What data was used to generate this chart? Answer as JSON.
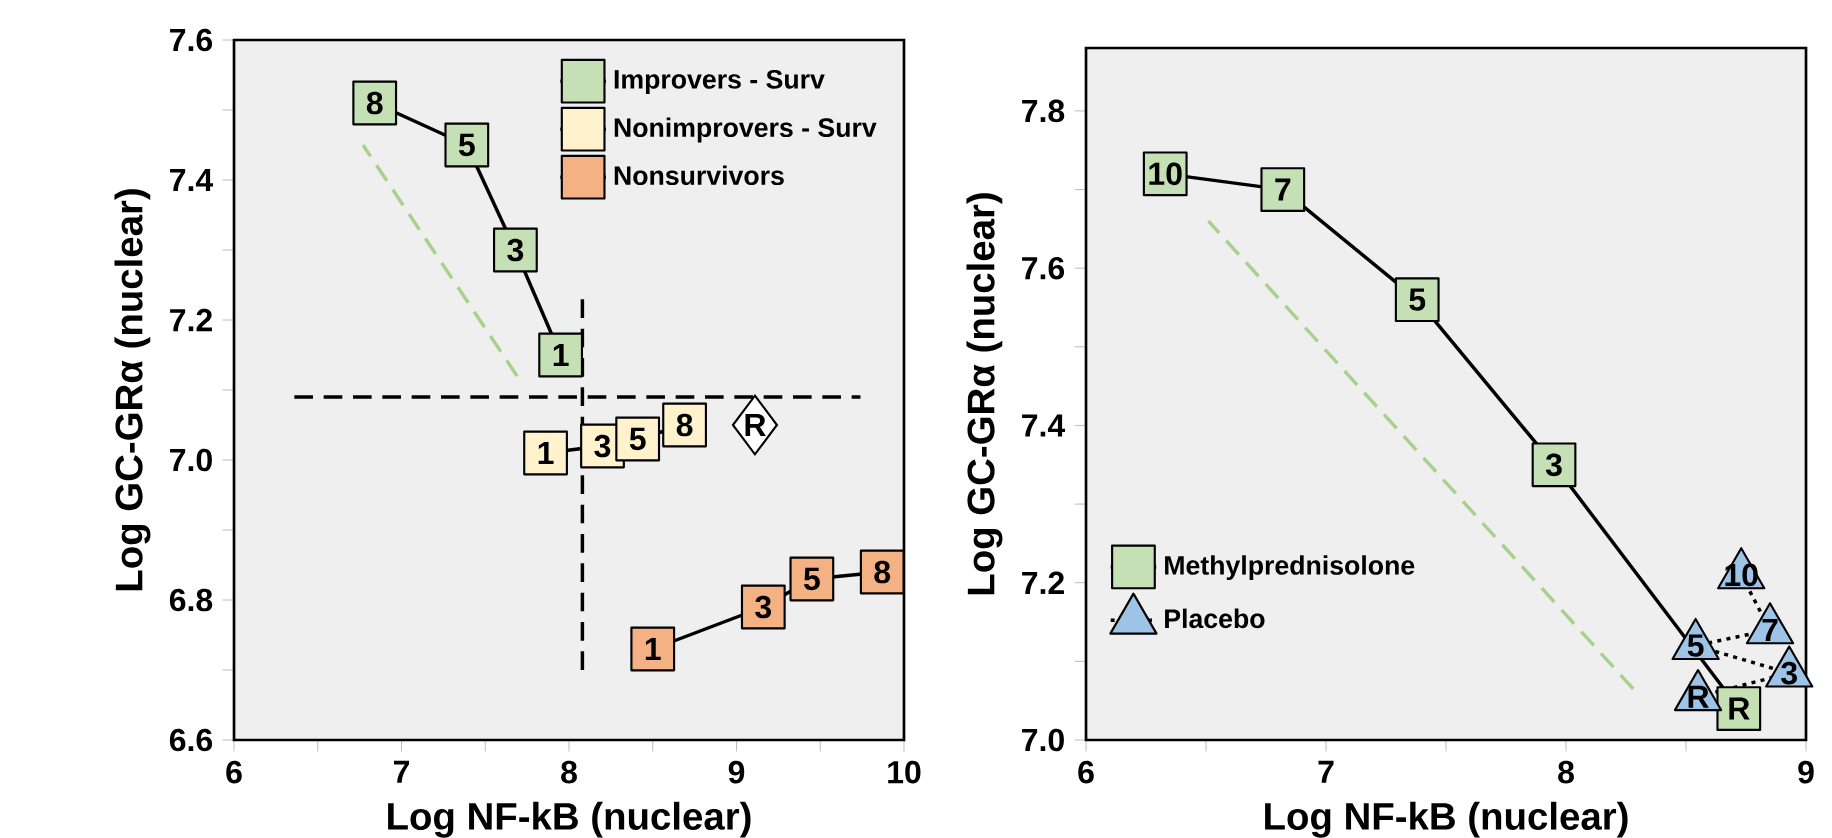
{
  "chart_data": [
    {
      "type": "line",
      "xlabel": "Log NF-kB (nuclear)",
      "ylabel": "Log GC-GRα (nuclear)",
      "xlim": [
        6,
        10
      ],
      "ylim": [
        6.6,
        7.6
      ],
      "xticks": [
        6,
        {
          "value": 6.5,
          "label": null
        },
        7,
        {
          "value": 7.5,
          "label": null
        },
        8,
        {
          "value": 8.5,
          "label": null
        },
        9,
        {
          "value": 9.5,
          "label": null
        },
        10
      ],
      "yticks": [
        6.6,
        {
          "value": 6.7,
          "label": null
        },
        6.8,
        {
          "value": 6.9,
          "label": null
        },
        {
          "value": 7.0,
          "label": "7.0"
        },
        {
          "value": 7.1,
          "label": null
        },
        7.2,
        {
          "value": 7.3,
          "label": null
        },
        7.4,
        {
          "value": 7.5,
          "label": null
        },
        7.6
      ],
      "legend": "top right",
      "grid": false,
      "series": [
        {
          "color": "#000000",
          "line_style": "dashed",
          "marker": "none",
          "x": [
            6.36,
            9.74
          ],
          "values": [
            7.09,
            7.09
          ]
        },
        {
          "color": "#000000",
          "line_style": "dashed",
          "marker": "none",
          "x": [
            8.08,
            8.08
          ],
          "values": [
            6.7,
            7.23
          ]
        },
        {
          "color": "#a9d18e",
          "line_style": "dashed",
          "marker": "none",
          "x": [
            7.69,
            6.77
          ],
          "values": [
            7.12,
            7.45
          ]
        },
        {
          "name": "Improvers - Surv",
          "color": "#c5e0b4",
          "line_style": "solid",
          "marker": "square",
          "x": [
            6.84,
            7.39,
            7.68,
            7.95
          ],
          "values": [
            7.51,
            7.45,
            7.3,
            7.15
          ]
        },
        {
          "name": "Nonimprovers - Surv",
          "color": "#fff2cc",
          "line_style": "solid",
          "marker": "square",
          "x": [
            7.86,
            8.2,
            8.41,
            8.69
          ],
          "values": [
            7.01,
            7.02,
            7.03,
            7.05
          ]
        },
        {
          "name": "Nonsurvivors",
          "color": "#f4b183",
          "line_style": "solid",
          "marker": "square",
          "x": [
            8.5,
            9.16,
            9.45,
            9.87
          ],
          "values": [
            6.73,
            6.79,
            6.83,
            6.84
          ]
        },
        {
          "type": "scatter",
          "color": "#ffffff",
          "marker": "diamond",
          "x": [
            9.11
          ],
          "values": [
            7.05
          ]
        }
      ],
      "annotations": [
        {
          "text": "8",
          "x": 6.84,
          "y": 7.51
        },
        {
          "text": "5",
          "x": 7.39,
          "y": 7.45
        },
        {
          "text": "3",
          "x": 7.68,
          "y": 7.3
        },
        {
          "text": "1",
          "x": 7.95,
          "y": 7.15
        },
        {
          "text": "1",
          "x": 7.86,
          "y": 7.01
        },
        {
          "text": "3",
          "x": 8.2,
          "y": 7.02
        },
        {
          "text": "5",
          "x": 8.41,
          "y": 7.03
        },
        {
          "text": "8",
          "x": 8.69,
          "y": 7.05
        },
        {
          "text": "1",
          "x": 8.5,
          "y": 6.73
        },
        {
          "text": "3",
          "x": 9.16,
          "y": 6.79
        },
        {
          "text": "5",
          "x": 9.45,
          "y": 6.83
        },
        {
          "text": "8",
          "x": 9.87,
          "y": 6.84
        },
        {
          "text": "R",
          "x": 9.11,
          "y": 7.05
        }
      ]
    },
    {
      "type": "line",
      "xlabel": "Log NF-kB (nuclear)",
      "ylabel": "Log GC-GRα (nuclear)",
      "xlim": [
        6,
        9
      ],
      "ylim": [
        7.0,
        7.88
      ],
      "xticks": [
        6,
        {
          "value": 6.5,
          "label": null
        },
        7,
        {
          "value": 7.5,
          "label": null
        },
        8,
        {
          "value": 8.5,
          "label": null
        },
        9
      ],
      "yticks": [
        {
          "value": 7.0,
          "label": "7.0"
        },
        {
          "value": 7.1,
          "label": null
        },
        7.2,
        {
          "value": 7.3,
          "label": null
        },
        7.4,
        {
          "value": 7.5,
          "label": null
        },
        7.6,
        {
          "value": 7.7,
          "label": null
        },
        7.8
      ],
      "legend": "bottom left",
      "grid": false,
      "series": [
        {
          "color": "#a9d18e",
          "line_style": "dashed",
          "marker": "none",
          "x": [
            8.28,
            6.51
          ],
          "values": [
            7.065,
            7.66
          ]
        },
        {
          "name": "Methylprednisolone",
          "color": "#c5e0b4",
          "line_style": "solid",
          "marker": "square",
          "x": [
            6.33,
            6.82,
            7.38,
            7.95,
            8.72
          ],
          "values": [
            7.72,
            7.7,
            7.56,
            7.35,
            7.04
          ]
        },
        {
          "name": "Placebo",
          "color": "#9dc3e6",
          "line_style": "dotted",
          "marker": "triangle",
          "x": [
            8.73,
            8.85,
            8.54,
            8.93,
            8.55
          ],
          "values": [
            7.21,
            7.14,
            7.12,
            7.085,
            7.055
          ]
        }
      ],
      "annotations": [
        {
          "text": "10",
          "x": 6.33,
          "y": 7.72
        },
        {
          "text": "7",
          "x": 6.82,
          "y": 7.7
        },
        {
          "text": "5",
          "x": 7.38,
          "y": 7.56
        },
        {
          "text": "3",
          "x": 7.95,
          "y": 7.35
        },
        {
          "text": "R",
          "x": 8.72,
          "y": 7.04
        },
        {
          "text": "10",
          "x": 8.73,
          "y": 7.21
        },
        {
          "text": "7",
          "x": 8.85,
          "y": 7.14
        },
        {
          "text": "5",
          "x": 8.54,
          "y": 7.12
        },
        {
          "text": "3",
          "x": 8.93,
          "y": 7.085
        },
        {
          "text": "R",
          "x": 8.55,
          "y": 7.055
        }
      ]
    }
  ]
}
